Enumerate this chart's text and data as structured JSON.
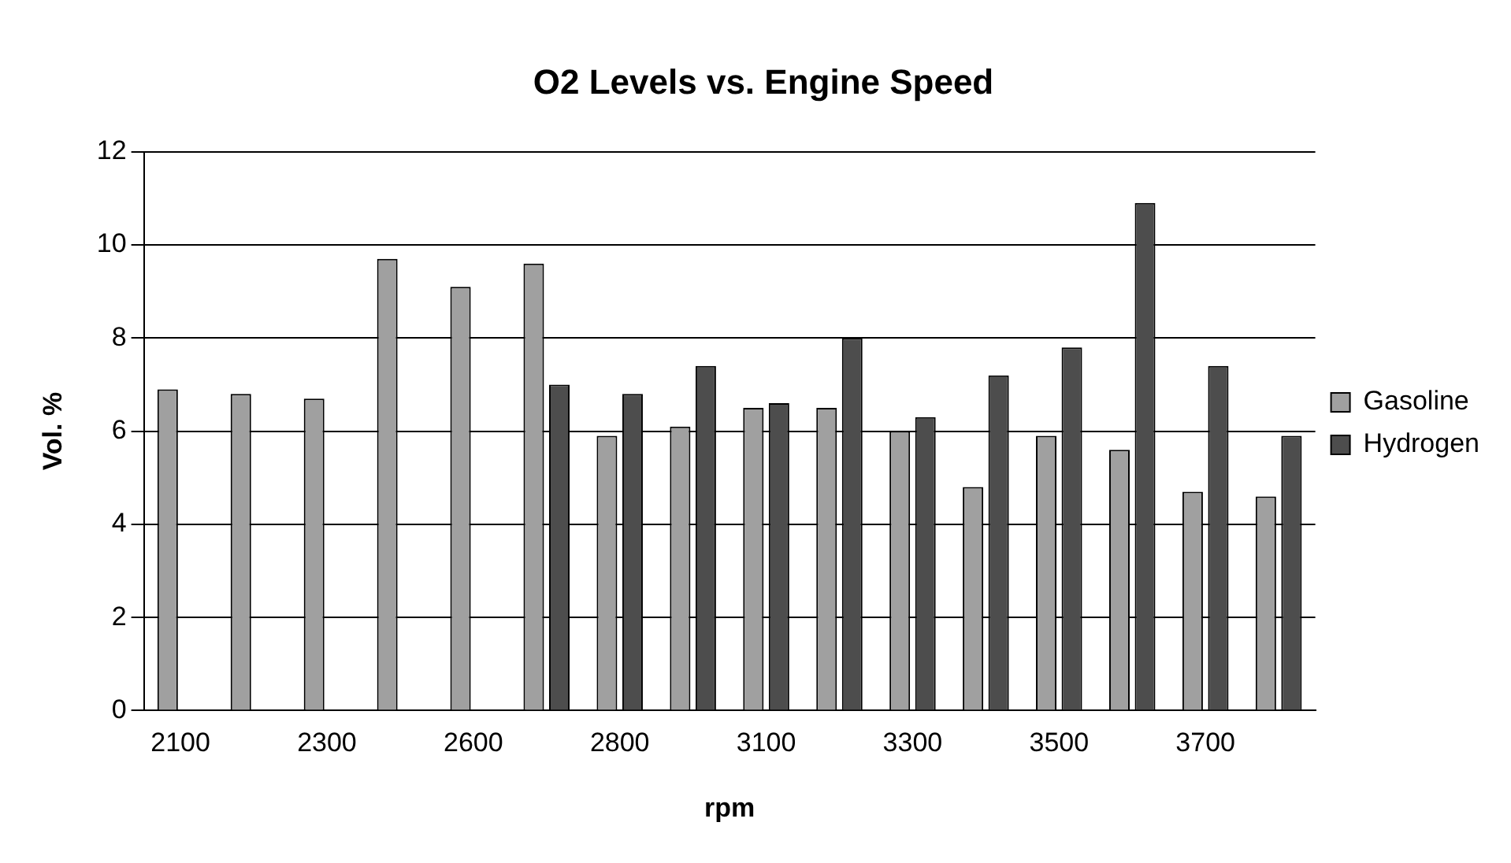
{
  "chart_data": {
    "type": "bar",
    "title": "O2 Levels vs. Engine Speed",
    "xlabel": "rpm",
    "ylabel": "Vol. %",
    "categories": [
      "2100",
      null,
      "2300",
      null,
      "2600",
      null,
      "2800",
      null,
      "3100",
      null,
      "3300",
      null,
      "3500",
      null,
      "3700",
      null
    ],
    "series": [
      {
        "name": "Gasoline",
        "color": "#a0a0a0",
        "values": [
          6.9,
          6.8,
          6.7,
          9.7,
          9.1,
          9.6,
          5.9,
          6.1,
          6.5,
          6.5,
          6.0,
          4.8,
          5.9,
          5.6,
          4.7,
          4.6
        ]
      },
      {
        "name": "Hydrogen",
        "color": "#4d4d4d",
        "values": [
          null,
          null,
          null,
          null,
          null,
          7.0,
          6.8,
          7.4,
          6.6,
          8.0,
          6.3,
          7.2,
          7.8,
          10.9,
          7.4,
          5.9
        ]
      }
    ],
    "ylim": [
      0,
      12
    ],
    "yticks": [
      0,
      2,
      4,
      6,
      8,
      10,
      12
    ],
    "grid": "y",
    "legend": "right"
  }
}
